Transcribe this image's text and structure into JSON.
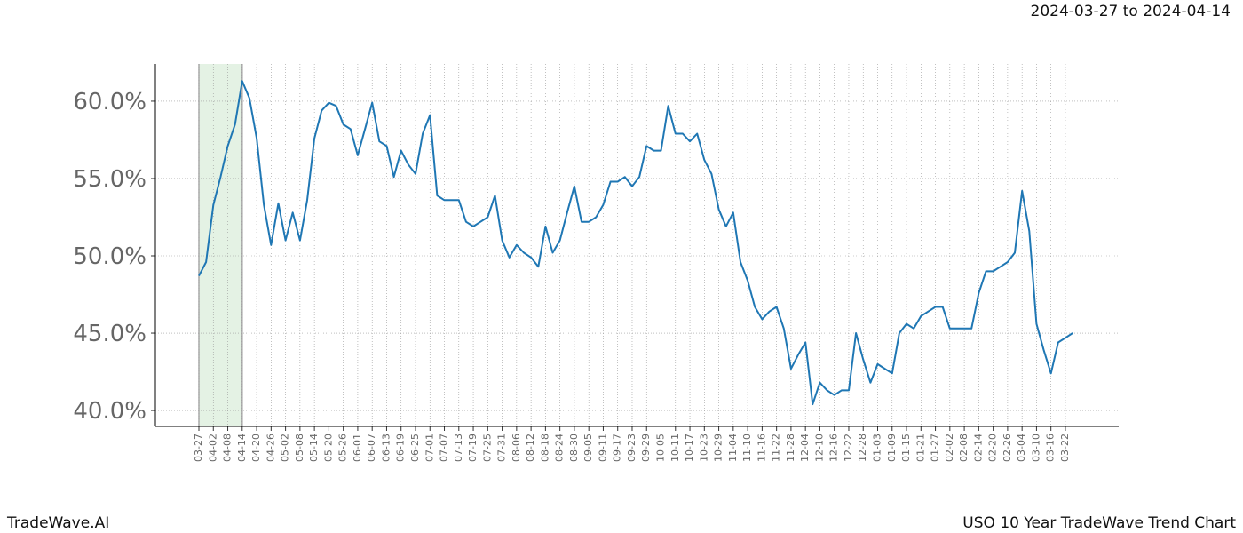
{
  "chart_data": {
    "type": "line",
    "title": "2024-03-27 to 2024-04-14",
    "footer_left": "TradeWave.AI",
    "footer_right": "USO 10 Year TradeWave Trend Chart",
    "x": [
      "03-27",
      "03-30",
      "04-02",
      "04-05",
      "04-08",
      "04-11",
      "04-14",
      "04-17",
      "04-20",
      "04-23",
      "04-26",
      "04-29",
      "05-02",
      "05-05",
      "05-08",
      "05-11",
      "05-14",
      "05-17",
      "05-20",
      "05-23",
      "05-26",
      "05-29",
      "06-01",
      "06-04",
      "06-07",
      "06-10",
      "06-13",
      "06-16",
      "06-19",
      "06-22",
      "06-25",
      "06-28",
      "07-01",
      "07-04",
      "07-07",
      "07-10",
      "07-13",
      "07-16",
      "07-19",
      "07-22",
      "07-25",
      "07-28",
      "07-31",
      "08-03",
      "08-06",
      "08-09",
      "08-12",
      "08-15",
      "08-18",
      "08-21",
      "08-24",
      "08-27",
      "08-30",
      "09-02",
      "09-05",
      "09-08",
      "09-11",
      "09-14",
      "09-17",
      "09-20",
      "09-23",
      "09-26",
      "09-29",
      "10-02",
      "10-05",
      "10-08",
      "10-11",
      "10-14",
      "10-17",
      "10-20",
      "10-23",
      "10-26",
      "10-29",
      "11-01",
      "11-04",
      "11-07",
      "11-10",
      "11-13",
      "11-16",
      "11-19",
      "11-22",
      "11-25",
      "11-28",
      "12-01",
      "12-04",
      "12-07",
      "12-10",
      "12-13",
      "12-16",
      "12-19",
      "12-22",
      "12-25",
      "12-28",
      "12-31",
      "01-03",
      "01-06",
      "01-09",
      "01-12",
      "01-15",
      "01-18",
      "01-21",
      "01-24",
      "01-27",
      "01-30",
      "02-02",
      "02-05",
      "02-08",
      "02-11",
      "02-14",
      "02-17",
      "02-20",
      "02-23",
      "02-26",
      "03-01",
      "03-04",
      "03-07",
      "03-10",
      "03-13",
      "03-16",
      "03-19",
      "03-22",
      "03-25"
    ],
    "series": [
      {
        "color": "#1f77b4",
        "values": [
          48.7,
          49.6,
          53.3,
          55.1,
          57.1,
          58.5,
          61.3,
          60.2,
          57.6,
          53.3,
          50.7,
          53.4,
          51.0,
          52.8,
          51.0,
          53.6,
          57.6,
          59.4,
          59.9,
          59.7,
          58.5,
          58.2,
          56.5,
          58.2,
          59.9,
          57.4,
          57.1,
          55.1,
          56.8,
          55.9,
          55.3,
          57.9,
          59.1,
          53.9,
          53.6,
          53.6,
          53.6,
          52.2,
          51.9,
          52.2,
          52.5,
          53.9,
          51.0,
          49.9,
          50.7,
          50.2,
          49.9,
          49.3,
          51.9,
          50.2,
          51.0,
          52.8,
          54.5,
          52.2,
          52.2,
          52.5,
          53.3,
          54.8,
          54.8,
          55.1,
          54.5,
          55.1,
          57.1,
          56.8,
          56.8,
          59.7,
          57.9,
          57.9,
          57.4,
          57.9,
          56.2,
          55.3,
          53.0,
          51.9,
          52.8,
          49.6,
          48.4,
          46.7,
          45.9,
          46.4,
          46.7,
          45.3,
          42.7,
          43.6,
          44.4,
          40.4,
          41.8,
          41.3,
          41.0,
          41.3,
          41.3,
          45.0,
          43.3,
          41.8,
          43.0,
          42.7,
          42.4,
          45.0,
          45.6,
          45.3,
          46.1,
          46.4,
          46.7,
          46.7,
          45.3,
          45.3,
          45.3,
          45.3,
          47.6,
          49.0,
          49.0,
          49.3,
          49.6,
          50.2,
          54.2,
          51.6,
          45.6,
          43.9,
          42.4,
          44.4,
          44.7,
          45.0
        ]
      }
    ],
    "xticks": [
      "03-27",
      "04-02",
      "04-08",
      "04-14",
      "04-20",
      "04-26",
      "05-02",
      "05-08",
      "05-14",
      "05-20",
      "05-26",
      "06-01",
      "06-07",
      "06-13",
      "06-19",
      "06-25",
      "07-01",
      "07-07",
      "07-13",
      "07-19",
      "07-25",
      "07-31",
      "08-06",
      "08-12",
      "08-18",
      "08-24",
      "08-30",
      "09-05",
      "09-11",
      "09-17",
      "09-23",
      "09-29",
      "10-05",
      "10-11",
      "10-17",
      "10-23",
      "10-29",
      "11-04",
      "11-10",
      "11-16",
      "11-22",
      "11-28",
      "12-04",
      "12-10",
      "12-16",
      "12-22",
      "12-28",
      "01-03",
      "01-09",
      "01-15",
      "01-21",
      "01-27",
      "02-02",
      "02-08",
      "02-14",
      "02-20",
      "02-26",
      "03-04",
      "03-10",
      "03-16",
      "03-22"
    ],
    "highlight": [
      "03-27",
      "04-14"
    ],
    "highlight_color": "#d9ecd9",
    "ylim": [
      38.97,
      62.41
    ],
    "yticks": [
      {
        "value": 40,
        "label": "40.0%"
      },
      {
        "value": 45,
        "label": "45.0%"
      },
      {
        "value": 50,
        "label": "50.0%"
      },
      {
        "value": 55,
        "label": "55.0%"
      },
      {
        "value": 60,
        "label": "60.0%"
      }
    ],
    "grid": true
  }
}
